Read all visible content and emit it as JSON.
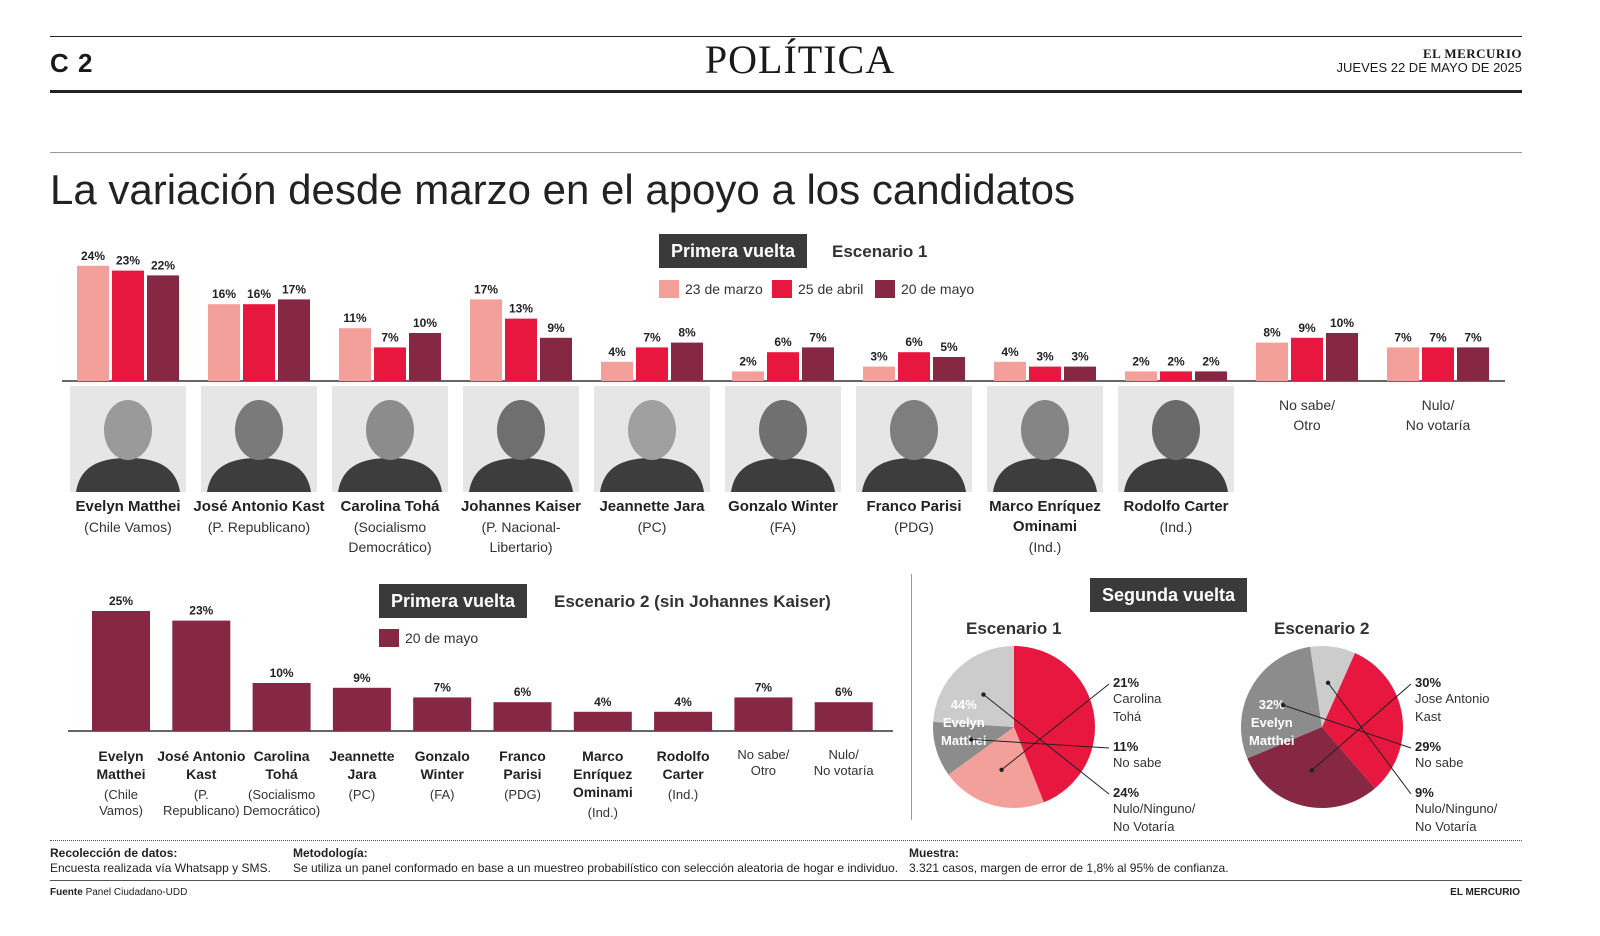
{
  "header": {
    "page_number": "C 2",
    "section": "POLÍTICA",
    "masthead": "EL MERCURIO",
    "dateline": "JUEVES 22 DE MAYO DE 2025"
  },
  "headline": "La variación desde marzo en el apoyo a los candidatos",
  "colors": {
    "marzo": "#f4a09a",
    "abril": "#e8173f",
    "mayo": "#862843",
    "box": "#3a3a3a",
    "gray_dark": "#8c8c8c",
    "gray_light": "#cccccc"
  },
  "chart_data": [
    {
      "type": "bar",
      "tag": "Primera vuelta",
      "subtitle": "Escenario 1",
      "categories": [
        "Evelyn Matthei",
        "José Antonio Kast",
        "Carolina Tohá",
        "Johannes Kaiser",
        "Jeannette Jara",
        "Gonzalo Winter",
        "Franco Parisi",
        "Marco Enríquez Ominami",
        "Rodolfo Carter",
        "No sabe/ Otro",
        "Nulo/ No votaría"
      ],
      "series": [
        {
          "name": "23 de marzo",
          "values": [
            24,
            16,
            11,
            17,
            4,
            2,
            3,
            4,
            2,
            8,
            7
          ],
          "labels": [
            "24%",
            "16%",
            "11%",
            "17%",
            "4%",
            "2%",
            "3%",
            "4%",
            "2%",
            "8%",
            "7%"
          ]
        },
        {
          "name": "25 de abril",
          "values": [
            23,
            16,
            7,
            13,
            7,
            6,
            6,
            3,
            2,
            9,
            7
          ],
          "labels": [
            "23%",
            "16%",
            "7%",
            "13%",
            "7%",
            "6%",
            "6%",
            "3%",
            "2%",
            "9%",
            "7%"
          ]
        },
        {
          "name": "20 de mayo",
          "values": [
            22,
            17,
            10,
            9,
            8,
            7,
            5,
            3,
            2,
            10,
            7
          ],
          "labels": [
            "22%",
            "17%",
            "10%",
            "9%",
            "8%",
            "7%",
            "5%",
            "3%",
            "2%",
            "10%",
            "7%"
          ]
        }
      ],
      "candidates": [
        {
          "name": "Evelyn Matthei",
          "party": "(Chile Vamos)"
        },
        {
          "name": "José Antonio Kast",
          "party": "(P. Republicano)"
        },
        {
          "name": "Carolina Tohá",
          "party": "(Socialismo Democrático)"
        },
        {
          "name": "Johannes Kaiser",
          "party": "(P. Nacional-Libertario)"
        },
        {
          "name": "Jeannette Jara",
          "party": "(PC)"
        },
        {
          "name": "Gonzalo Winter",
          "party": "(FA)"
        },
        {
          "name": "Franco Parisi",
          "party": "(PDG)"
        },
        {
          "name": "Marco Enríquez Ominami",
          "party": "(Ind.)"
        },
        {
          "name": "Rodolfo Carter",
          "party": "(Ind.)"
        }
      ],
      "extra_labels": [
        {
          "l1": "No sabe/",
          "l2": "Otro"
        },
        {
          "l1": "Nulo/",
          "l2": "No votaría"
        }
      ]
    },
    {
      "type": "bar",
      "tag": "Primera vuelta",
      "subtitle": "Escenario 2 (sin Johannes Kaiser)",
      "legend": "20 de mayo",
      "categories": [
        {
          "l1": "Evelyn",
          "l2": "Matthei",
          "p1": "(Chile",
          "p2": "Vamos)"
        },
        {
          "l1": "José Antonio",
          "l2": "Kast",
          "p1": "(P.",
          "p2": "Republicano)"
        },
        {
          "l1": "Carolina",
          "l2": "Tohá",
          "p1": "(Socialismo",
          "p2": "Democrático)"
        },
        {
          "l1": "Jeannette",
          "l2": "Jara",
          "p1": "(PC)",
          "p2": ""
        },
        {
          "l1": "Gonzalo",
          "l2": "Winter",
          "p1": "(FA)",
          "p2": ""
        },
        {
          "l1": "Franco",
          "l2": "Parisi",
          "p1": "(PDG)",
          "p2": ""
        },
        {
          "l1": "Marco Enríquez",
          "l2": "Ominami",
          "p1": "(Ind.)",
          "p2": ""
        },
        {
          "l1": "Rodolfo",
          "l2": "Carter",
          "p1": "(Ind.)",
          "p2": ""
        },
        {
          "l1": "",
          "l2": "",
          "p1": "No sabe/",
          "p2": "Otro"
        },
        {
          "l1": "",
          "l2": "",
          "p1": "Nulo/",
          "p2": "No votaría"
        }
      ],
      "values": [
        25,
        23,
        10,
        9,
        7,
        6,
        4,
        4,
        7,
        6
      ],
      "labels": [
        "25%",
        "23%",
        "10%",
        "9%",
        "7%",
        "6%",
        "4%",
        "4%",
        "7%",
        "6%"
      ]
    },
    {
      "type": "pie",
      "tag": "Segunda vuelta",
      "title": "Escenario 1",
      "slices": [
        {
          "label": "Evelyn Matthei",
          "value": 44,
          "pct": "44%",
          "l1": "Evelyn",
          "l2": "Matthei",
          "color": "#e8173f"
        },
        {
          "label": "Carolina Tohá",
          "value": 21,
          "pct": "21%",
          "l1": "Carolina",
          "l2": "Tohá",
          "color": "#f4a09a"
        },
        {
          "label": "No sabe",
          "value": 11,
          "pct": "11%",
          "l1": "No sabe",
          "l2": "",
          "color": "#8c8c8c"
        },
        {
          "label": "Nulo/Ninguno/No Votaría",
          "value": 24,
          "pct": "24%",
          "l1": "Nulo/Ninguno/",
          "l2": "No Votaría",
          "color": "#cccccc"
        }
      ]
    },
    {
      "type": "pie",
      "title": "Escenario 2",
      "slices": [
        {
          "label": "Evelyn Matthei",
          "value": 32,
          "pct": "32%",
          "l1": "Evelyn",
          "l2": "Matthei",
          "color": "#e8173f"
        },
        {
          "label": "Jose Antonio Kast",
          "value": 30,
          "pct": "30%",
          "l1": "Jose Antonio",
          "l2": "Kast",
          "color": "#862843"
        },
        {
          "label": "No sabe",
          "value": 29,
          "pct": "29%",
          "l1": "No sabe",
          "l2": "",
          "color": "#8c8c8c"
        },
        {
          "label": "Nulo/Ninguno/No Votaría",
          "value": 9,
          "pct": "9%",
          "l1": "Nulo/Ninguno/",
          "l2": "No Votaría",
          "color": "#cccccc"
        }
      ]
    }
  ],
  "footer": {
    "recoleccion_title": "Recolección de datos:",
    "recoleccion_text": "Encuesta realizada vía Whatsapp y SMS.",
    "metodologia_title": "Metodología:",
    "metodologia_text": "Se utiliza un panel conformado en base a un muestreo probabilístico con selección aleatoria de hogar e individuo.",
    "muestra_title": "Muestra:",
    "muestra_text": "3.321 casos, margen de error de 1,8% al 95% de confianza.",
    "fuente_label": "Fuente",
    "fuente_text": "Panel Ciudadano-UDD",
    "credit": "EL MERCURIO"
  }
}
